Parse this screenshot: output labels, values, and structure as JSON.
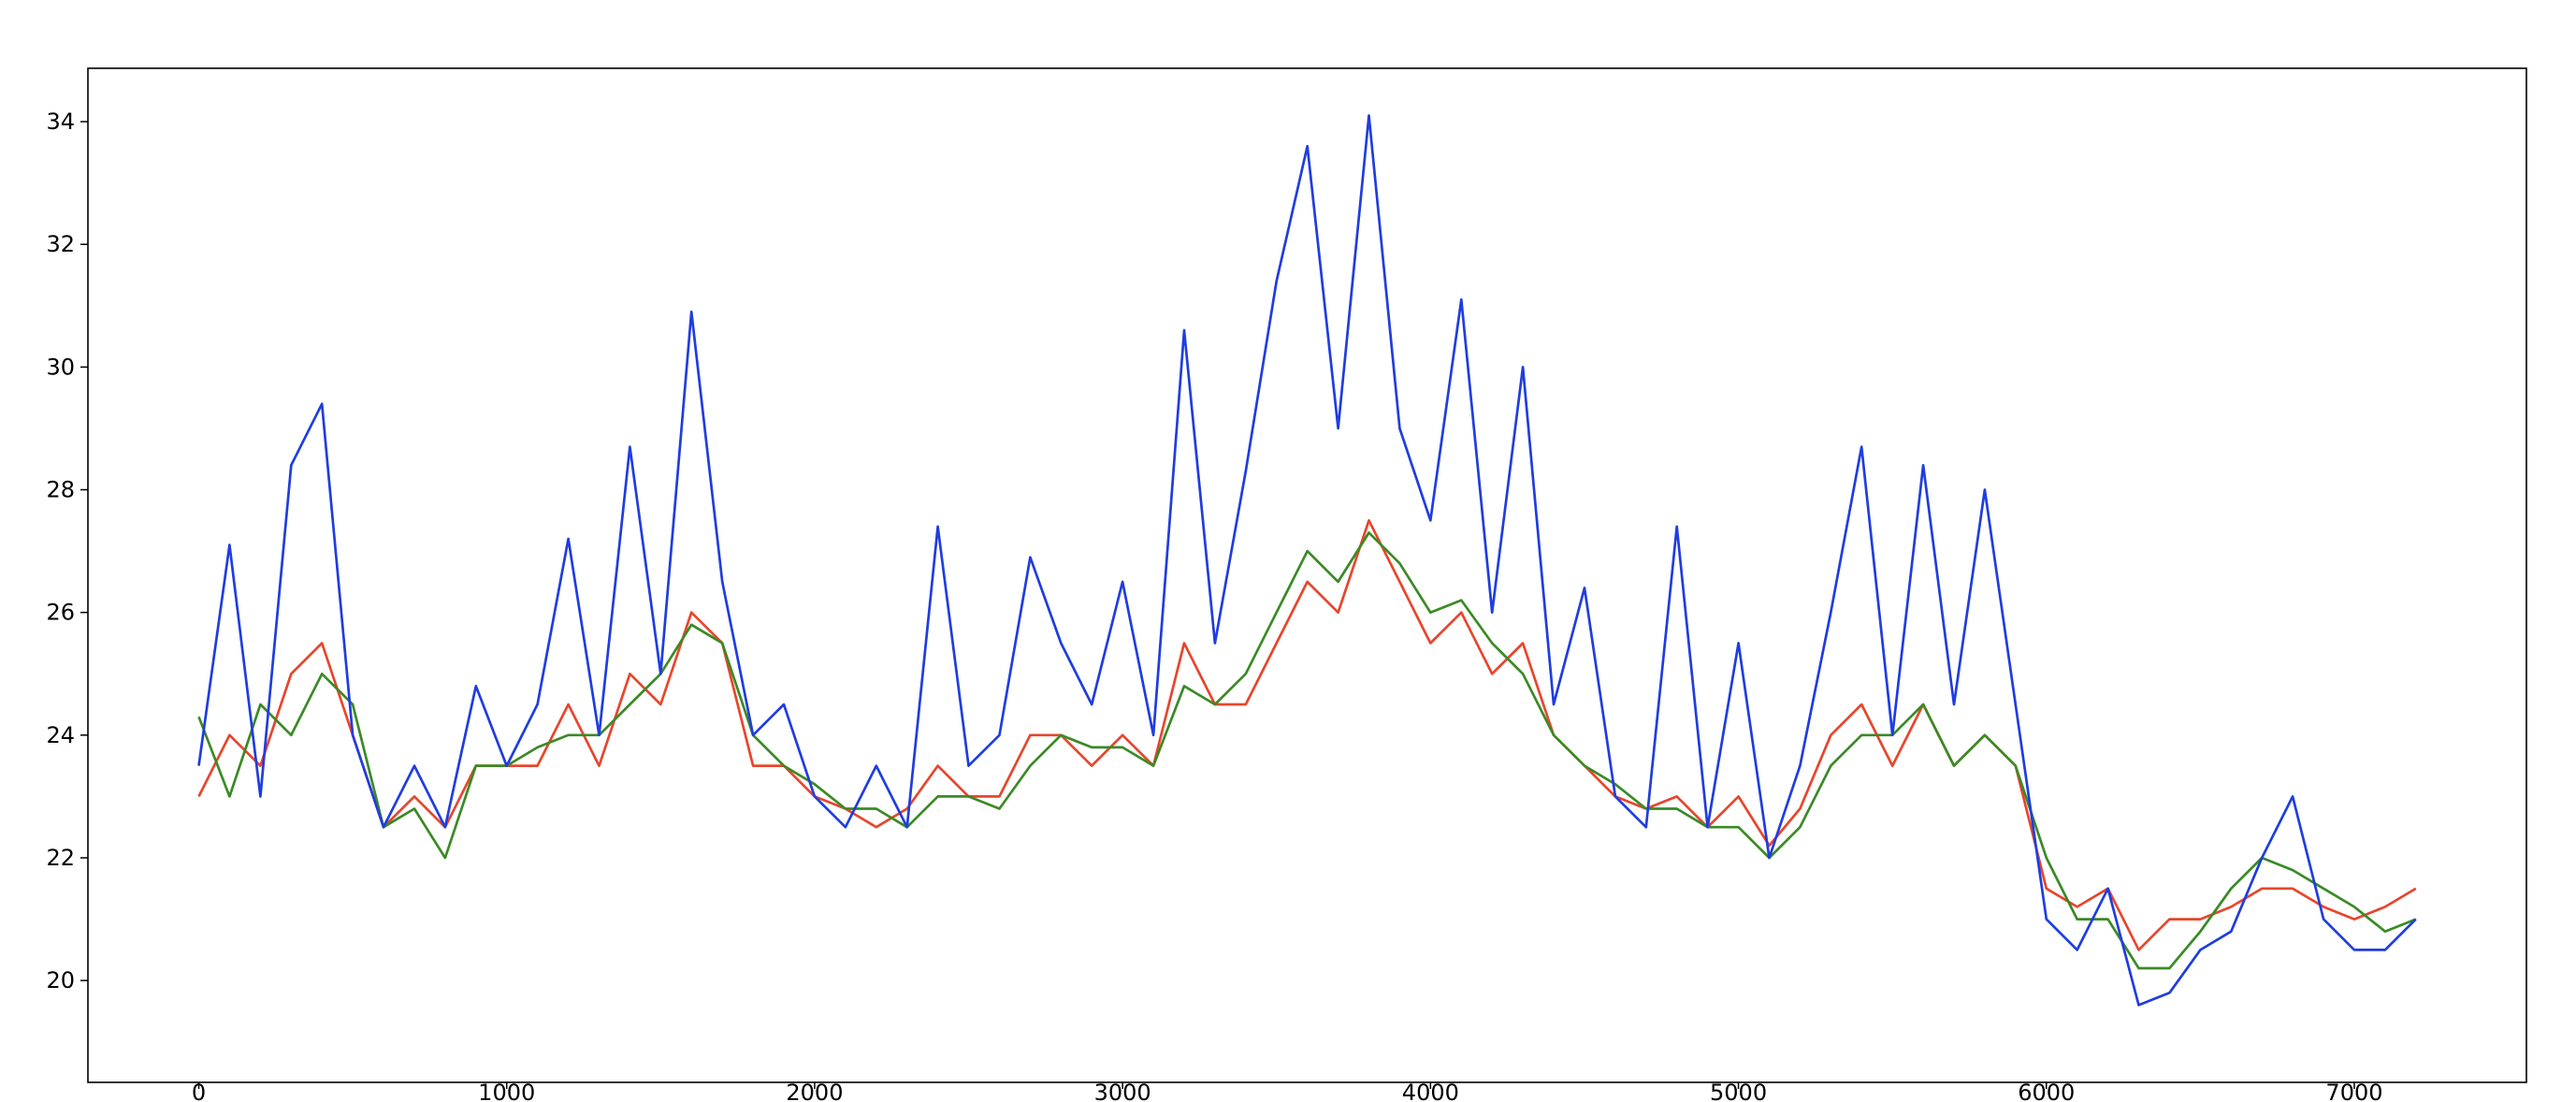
{
  "chart_data": {
    "type": "line",
    "x": [
      0,
      100,
      200,
      300,
      400,
      500,
      600,
      700,
      800,
      900,
      1000,
      1100,
      1200,
      1300,
      1400,
      1500,
      1600,
      1700,
      1800,
      1900,
      2000,
      2100,
      2200,
      2300,
      2400,
      2500,
      2600,
      2700,
      2800,
      2900,
      3000,
      3100,
      3200,
      3300,
      3400,
      3500,
      3600,
      3700,
      3800,
      3900,
      4000,
      4100,
      4200,
      4300,
      4400,
      4500,
      4600,
      4700,
      4800,
      4900,
      5000,
      5100,
      5200,
      5300,
      5400,
      5500,
      5600,
      5700,
      5800,
      5900,
      6000,
      6100,
      6200,
      6300,
      6400,
      6500,
      6600,
      6700,
      6800,
      6900,
      7000,
      7100,
      7200
    ],
    "series": [
      {
        "color": "#e8452c",
        "values": [
          23.0,
          24.0,
          23.5,
          25.0,
          25.5,
          24.0,
          22.5,
          23.0,
          22.5,
          23.5,
          23.5,
          23.5,
          24.5,
          23.5,
          25.0,
          24.5,
          26.0,
          25.5,
          23.5,
          23.5,
          23.0,
          22.8,
          22.5,
          22.8,
          23.5,
          23.0,
          23.0,
          24.0,
          24.0,
          23.5,
          24.0,
          23.5,
          25.5,
          24.5,
          24.5,
          25.5,
          26.5,
          26.0,
          27.5,
          26.5,
          25.5,
          26.0,
          25.0,
          25.5,
          24.0,
          23.5,
          23.0,
          22.8,
          23.0,
          22.5,
          23.0,
          22.2,
          22.8,
          24.0,
          24.5,
          23.5,
          24.5,
          23.5,
          24.0,
          23.5,
          21.5,
          21.2,
          21.5,
          20.5,
          21.0,
          21.0,
          21.2,
          21.5,
          21.5,
          21.2,
          21.0,
          21.2,
          21.5
        ]
      },
      {
        "color": "#3a8a25",
        "values": [
          24.3,
          23.0,
          24.5,
          24.0,
          25.0,
          24.5,
          22.5,
          22.8,
          22.0,
          23.5,
          23.5,
          23.8,
          24.0,
          24.0,
          24.5,
          25.0,
          25.8,
          25.5,
          24.0,
          23.5,
          23.2,
          22.8,
          22.8,
          22.5,
          23.0,
          23.0,
          22.8,
          23.5,
          24.0,
          23.8,
          23.8,
          23.5,
          24.8,
          24.5,
          25.0,
          26.0,
          27.0,
          26.5,
          27.3,
          26.8,
          26.0,
          26.2,
          25.5,
          25.0,
          24.0,
          23.5,
          23.2,
          22.8,
          22.8,
          22.5,
          22.5,
          22.0,
          22.5,
          23.5,
          24.0,
          24.0,
          24.5,
          23.5,
          24.0,
          23.5,
          22.0,
          21.0,
          21.0,
          20.2,
          20.2,
          20.8,
          21.5,
          22.0,
          21.8,
          21.5,
          21.2,
          20.8,
          21.0
        ]
      },
      {
        "color": "#1f3de0",
        "values": [
          23.5,
          27.1,
          23.0,
          28.4,
          29.4,
          24.0,
          22.5,
          23.5,
          22.5,
          24.8,
          23.5,
          24.5,
          27.2,
          24.0,
          28.7,
          25.0,
          30.9,
          26.5,
          24.0,
          24.5,
          23.0,
          22.5,
          23.5,
          22.5,
          27.4,
          23.5,
          24.0,
          26.9,
          25.5,
          24.5,
          26.5,
          24.0,
          30.6,
          25.5,
          28.3,
          31.4,
          33.6,
          29.0,
          34.1,
          29.0,
          27.5,
          31.1,
          26.0,
          30.0,
          24.5,
          26.4,
          23.0,
          22.5,
          27.4,
          22.5,
          25.5,
          22.0,
          23.5,
          26.0,
          28.7,
          24.0,
          28.4,
          24.5,
          28.0,
          24.5,
          21.0,
          20.5,
          21.5,
          19.6,
          19.8,
          20.5,
          20.8,
          22.0,
          23.0,
          21.0,
          20.5,
          20.5,
          21.0
        ]
      }
    ],
    "xlim": [
      -360,
      7559
    ],
    "ylim": [
      18.34,
      34.87
    ],
    "xticks": [
      0,
      1000,
      2000,
      3000,
      4000,
      5000,
      6000,
      7000
    ],
    "yticks": [
      20,
      22,
      24,
      26,
      28,
      30,
      32,
      34
    ]
  }
}
